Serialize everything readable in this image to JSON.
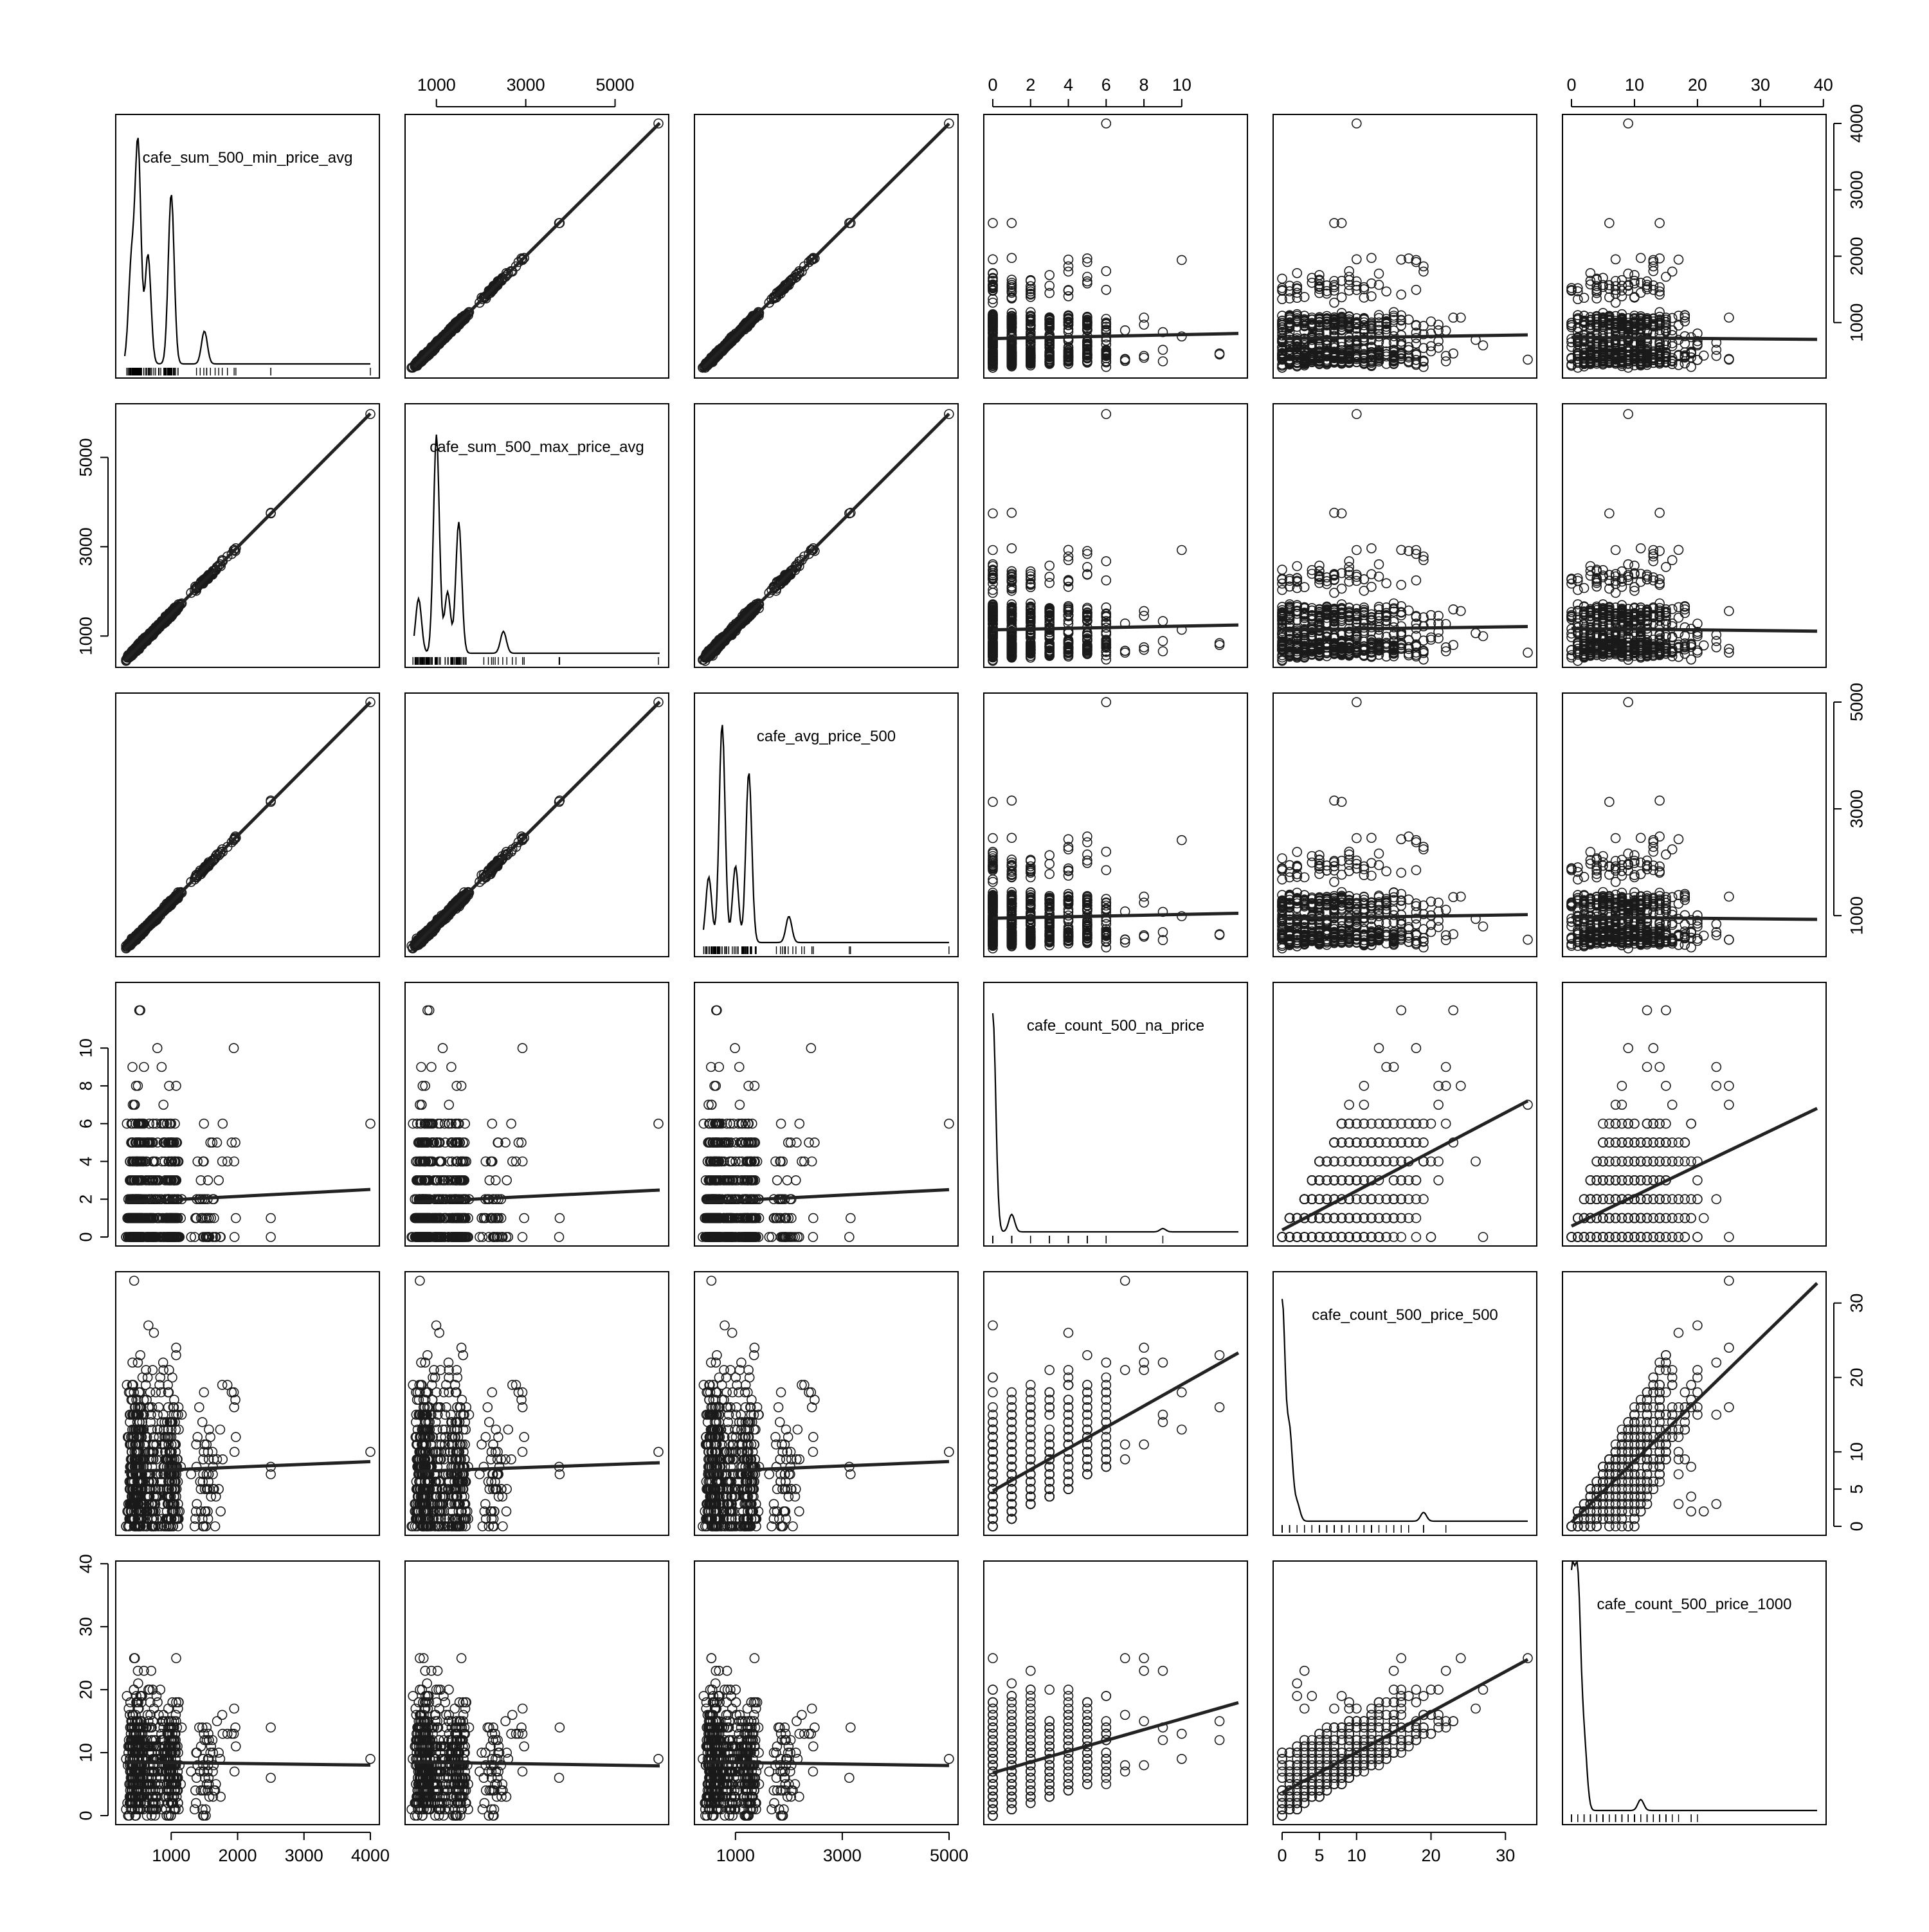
{
  "chart_data": {
    "type": "scatter",
    "variables": [
      {
        "name": "cafe_sum_500_min_price_avg",
        "range": [
          300,
          4000
        ],
        "ticks": [
          1000,
          2000,
          3000,
          4000
        ],
        "peaks": [
          [
            400,
            0.45
          ],
          [
            500,
            1.0
          ],
          [
            650,
            0.5
          ],
          [
            1000,
            0.78
          ],
          [
            1500,
            0.15
          ]
        ]
      },
      {
        "name": "cafe_sum_500_max_price_avg",
        "range": [
          500,
          6000
        ],
        "ticks": [
          1000,
          3000,
          5000
        ],
        "peaks": [
          [
            600,
            0.25
          ],
          [
            1000,
            1.0
          ],
          [
            1250,
            0.28
          ],
          [
            1500,
            0.6
          ],
          [
            2500,
            0.1
          ]
        ]
      },
      {
        "name": "cafe_avg_price_500",
        "range": [
          400,
          5000
        ],
        "ticks": [
          1000,
          3000,
          5000
        ],
        "peaks": [
          [
            500,
            0.3
          ],
          [
            750,
            1.0
          ],
          [
            1000,
            0.35
          ],
          [
            1250,
            0.78
          ],
          [
            2000,
            0.12
          ]
        ]
      },
      {
        "name": "cafe_count_500_na_price",
        "range": [
          0,
          13
        ],
        "ticks": [
          0,
          2,
          4,
          6,
          8,
          10
        ],
        "peaks": [
          [
            0,
            1.0
          ],
          [
            1,
            0.08
          ],
          [
            9,
            0.015
          ]
        ]
      },
      {
        "name": "cafe_count_500_price_500",
        "range": [
          0,
          33
        ],
        "ticks": [
          0,
          5,
          10,
          20,
          30
        ],
        "peaks": [
          [
            0,
            1.0
          ],
          [
            1,
            0.4
          ],
          [
            2,
            0.08
          ],
          [
            19,
            0.04
          ]
        ]
      },
      {
        "name": "cafe_count_500_price_1000",
        "range": [
          0,
          39
        ],
        "ticks": [
          0,
          10,
          20,
          30,
          40
        ],
        "peaks": [
          [
            0,
            1.0
          ],
          [
            1,
            0.98
          ],
          [
            2,
            0.3
          ],
          [
            11,
            0.05
          ]
        ]
      }
    ],
    "layout": "pairs",
    "lower_panel": "scatter with fitted line",
    "upper_panel": "scatter with fitted line",
    "diagonal": "density with rug",
    "grid": false
  }
}
